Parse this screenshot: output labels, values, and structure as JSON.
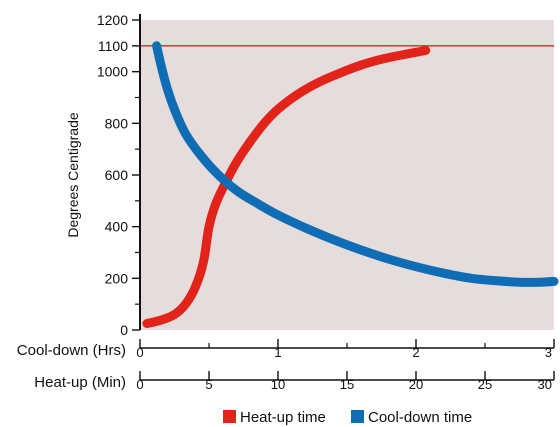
{
  "chart_data": {
    "type": "line",
    "ylabel": "Degrees Centigrade",
    "ylim": [
      0,
      1200
    ],
    "yticks_major": [
      0,
      200,
      400,
      600,
      800,
      1000,
      1100,
      1200
    ],
    "yticks_minor": [
      100,
      300,
      500,
      700,
      900
    ],
    "x_axes": [
      {
        "label": "Cool-down (Hrs)",
        "lim": [
          0,
          3
        ],
        "major": [
          0,
          1,
          2,
          3
        ],
        "minor": [
          0.5,
          1.5,
          2.5
        ]
      },
      {
        "label": "Heat-up (Min)",
        "lim": [
          0,
          30
        ],
        "major": [
          0,
          5,
          10,
          15,
          20,
          25,
          30
        ],
        "minor": []
      }
    ],
    "reference_line": {
      "y": 1100,
      "color": "#e2231a"
    },
    "grid": false,
    "background": "#e5dcdb",
    "legend_position": "bottom",
    "series": [
      {
        "name": "Heat-up time",
        "color": "#e2231a",
        "x_axis": "Heat-up (Min)",
        "x": [
          0.5,
          1.5,
          2.5,
          3.3,
          4.0,
          4.6,
          5.0,
          5.5,
          6.2,
          7.0,
          8.0,
          9.0,
          10.0,
          11.5,
          13.0,
          14.5,
          16.0,
          17.5,
          19.0,
          20.0,
          20.7
        ],
        "y": [
          25,
          38,
          60,
          100,
          165,
          265,
          400,
          490,
          570,
          650,
          730,
          800,
          855,
          915,
          960,
          995,
          1025,
          1048,
          1065,
          1075,
          1082
        ]
      },
      {
        "name": "Cool-down time",
        "color": "#0f6db5",
        "x_axis": "Cool-down (Hrs)",
        "x": [
          0.12,
          0.15,
          0.2,
          0.26,
          0.33,
          0.42,
          0.55,
          0.7,
          0.85,
          1.0,
          1.2,
          1.4,
          1.6,
          1.8,
          2.0,
          2.2,
          2.4,
          2.6,
          2.75,
          2.9,
          3.0
        ],
        "y": [
          1100,
          1030,
          930,
          840,
          760,
          690,
          610,
          540,
          490,
          445,
          395,
          350,
          310,
          275,
          245,
          220,
          200,
          190,
          185,
          185,
          188
        ]
      }
    ]
  }
}
